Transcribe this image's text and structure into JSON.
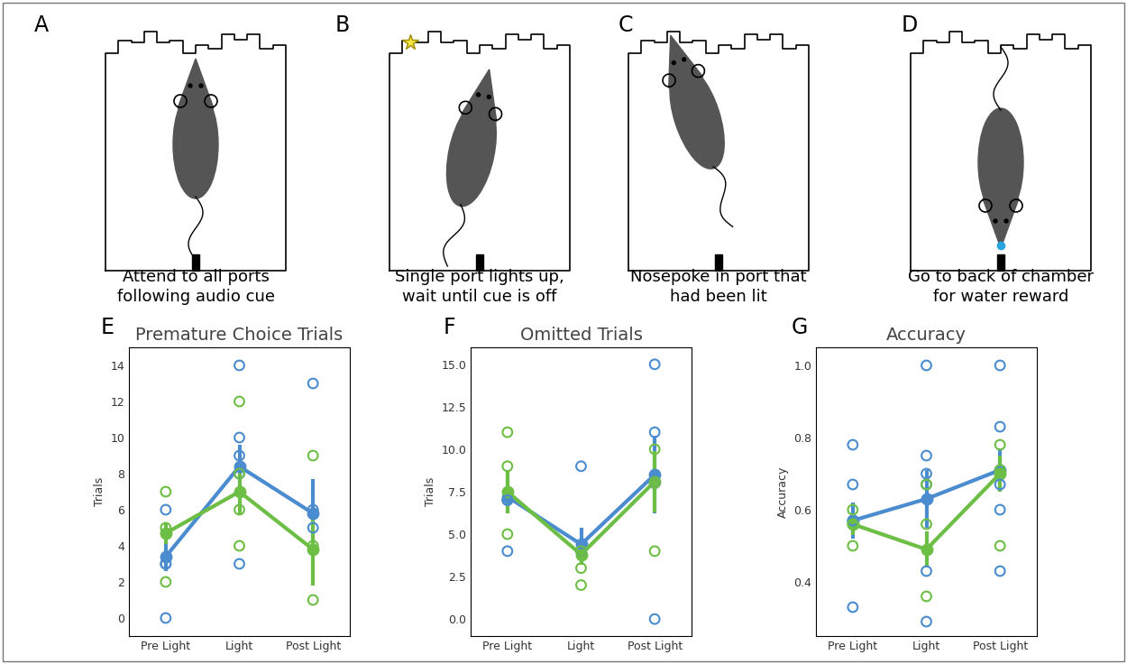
{
  "diagram": {
    "panels": [
      {
        "label": "A",
        "caption": "Attend to all ports\nfollowing audio cue"
      },
      {
        "label": "B",
        "caption": "Single port lights up,\nwait until cue is off"
      },
      {
        "label": "C",
        "caption": "Nosepoke in port that\nhad been lit"
      },
      {
        "label": "D",
        "caption": "Go to back of chamber\nfor water reward"
      }
    ]
  },
  "chart_data": [
    {
      "type": "line",
      "label": "E",
      "title": "Premature Choice Trials",
      "y_label": "Trials",
      "categories": [
        "Pre Light",
        "Light",
        "Post Light"
      ],
      "ylim": [
        -1,
        15
      ],
      "yticks": [
        0,
        2,
        4,
        6,
        8,
        10,
        12,
        14
      ],
      "series": [
        {
          "color": "#4a8ccf",
          "values": [
            3.4,
            8.4,
            5.8
          ],
          "error": [
            0.8,
            1.2,
            1.9
          ],
          "points": [
            [
              0,
              3,
              3,
              6
            ],
            [
              3,
              8,
              9,
              10,
              14
            ],
            [
              5,
              6,
              13
            ]
          ]
        },
        {
          "color": "#6dbe45",
          "values": [
            4.7,
            7.0,
            3.8
          ],
          "error": [
            0.6,
            1.3,
            2.0
          ],
          "points": [
            [
              2,
              5,
              7
            ],
            [
              4,
              6,
              8,
              12
            ],
            [
              1,
              4,
              9
            ]
          ]
        }
      ]
    },
    {
      "type": "line",
      "label": "F",
      "title": "Omitted Trials",
      "y_label": "Trials",
      "categories": [
        "Pre Light",
        "Light",
        "Post Light"
      ],
      "ylim": [
        -1,
        16
      ],
      "yticks": [
        {
          "value": 0,
          "label": "0.0"
        },
        {
          "value": 2.5,
          "label": "2.5"
        },
        {
          "value": 5,
          "label": "5.0"
        },
        {
          "value": 7.5,
          "label": "7.5"
        },
        {
          "value": 10,
          "label": "10.0"
        },
        {
          "value": 12.5,
          "label": "12.5"
        },
        {
          "value": 15,
          "label": "15.0"
        }
      ],
      "series": [
        {
          "color": "#4a8ccf",
          "values": [
            7.2,
            4.4,
            8.5
          ],
          "error": [
            1.0,
            1.0,
            2.3
          ],
          "points": [
            [
              4,
              7,
              7
            ],
            [
              4,
              9
            ],
            [
              0,
              8,
              11,
              15
            ]
          ]
        },
        {
          "color": "#6dbe45",
          "values": [
            7.5,
            3.8,
            8.1
          ],
          "error": [
            1.3,
            0.6,
            1.8
          ],
          "points": [
            [
              5,
              9,
              11
            ],
            [
              2,
              3,
              4
            ],
            [
              4,
              8,
              10
            ]
          ]
        }
      ]
    },
    {
      "type": "line",
      "label": "G",
      "title": "Accuracy",
      "y_label": "Accuracy",
      "categories": [
        "Pre Light",
        "Light",
        "Post Light"
      ],
      "ylim": [
        0.25,
        1.05
      ],
      "yticks": [
        0.4,
        0.6,
        0.8,
        1.0
      ],
      "series": [
        {
          "color": "#4a8ccf",
          "values": [
            0.57,
            0.63,
            0.71
          ],
          "error": [
            0.05,
            0.08,
            0.06
          ],
          "points": [
            [
              0.33,
              0.57,
              0.67,
              0.78
            ],
            [
              0.29,
              0.43,
              0.67,
              0.7,
              0.75,
              1.0
            ],
            [
              0.43,
              0.6,
              0.67,
              0.83,
              1.0
            ]
          ]
        },
        {
          "color": "#6dbe45",
          "values": [
            0.56,
            0.49,
            0.7
          ],
          "error": [
            0.03,
            0.05,
            0.05
          ],
          "points": [
            [
              0.5,
              0.56,
              0.6
            ],
            [
              0.36,
              0.56,
              0.67
            ],
            [
              0.5,
              0.71,
              0.78
            ]
          ]
        }
      ]
    }
  ]
}
